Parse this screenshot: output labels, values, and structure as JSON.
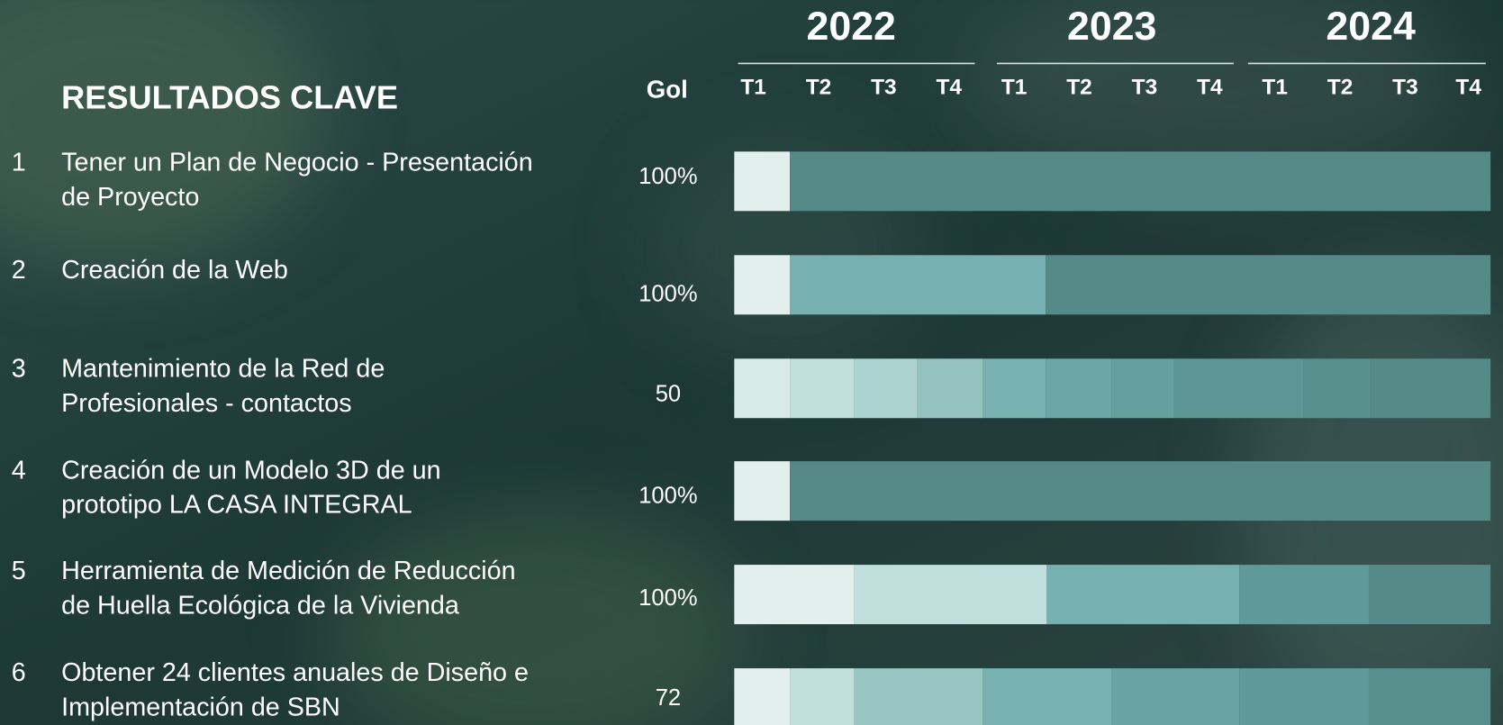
{
  "header": {
    "title": "RESULTADOS CLAVE",
    "goal_heading": "Gol",
    "years": [
      "2022",
      "2023",
      "2024"
    ],
    "quarters": [
      "T1",
      "T2",
      "T3",
      "T4",
      "T1",
      "T2",
      "T3",
      "T4",
      "T1",
      "T2",
      "T3",
      "T4"
    ]
  },
  "rows": [
    {
      "number": "1",
      "label": [
        "Tener un Plan de Negocio - Presentación",
        "de Proyecto"
      ],
      "goal": "100%"
    },
    {
      "number": "2",
      "label": [
        "Creación de la Web"
      ],
      "goal": "100%"
    },
    {
      "number": "3",
      "label": [
        "Mantenimiento de la Red de",
        "Profesionales - contactos"
      ],
      "goal": 50
    },
    {
      "number": "4",
      "label": [
        "Creación de un Modelo 3D de un",
        "prototipo LA CASA INTEGRAL"
      ],
      "goal": "100%"
    },
    {
      "number": "5",
      "label": [
        "Herramienta de Medición de Reducción",
        "de Huella Ecológica de la Vivienda"
      ],
      "goal": "100%"
    },
    {
      "number": "6",
      "label": [
        "Obtener 24 clientes anuales de Diseño e",
        "Implementación de SBN"
      ],
      "goal": 72
    }
  ]
}
